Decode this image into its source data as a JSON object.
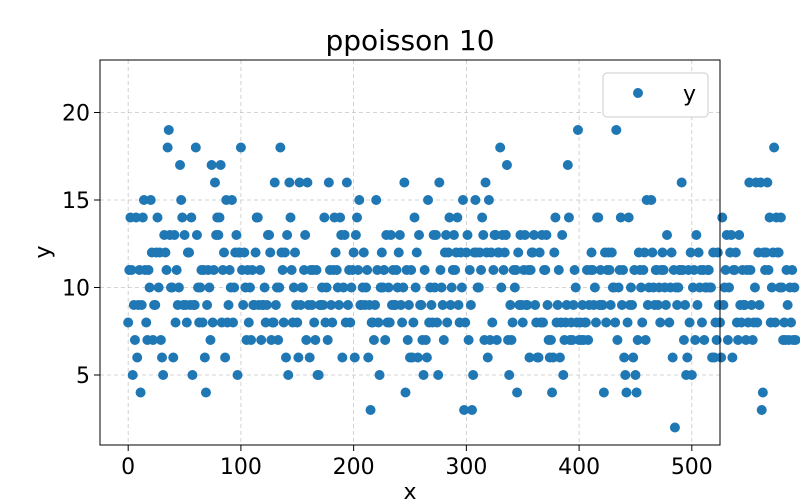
{
  "chart_data": {
    "type": "scatter",
    "title": "ppoisson 10",
    "xlabel": "x",
    "ylabel": "y",
    "xlim": [
      -25,
      525
    ],
    "ylim": [
      1.0,
      23.0
    ],
    "xticks": [
      0,
      100,
      200,
      300,
      400,
      500
    ],
    "yticks": [
      5,
      10,
      15,
      20
    ],
    "grid": true,
    "legend_position": "top-right",
    "series": [
      {
        "name": "y",
        "color": "#1f77b4",
        "y": [
          8,
          11,
          14,
          11,
          5,
          9,
          7,
          14,
          6,
          9,
          11,
          4,
          9,
          14,
          15,
          11,
          8,
          7,
          11,
          10,
          15,
          12,
          7,
          9,
          9,
          12,
          14,
          10,
          12,
          7,
          6,
          5,
          13,
          12,
          11,
          18,
          19,
          13,
          10,
          10,
          6,
          13,
          8,
          11,
          9,
          10,
          17,
          15,
          14,
          9,
          13,
          9,
          8,
          12,
          12,
          9,
          14,
          5,
          9,
          9,
          18,
          13,
          10,
          8,
          10,
          11,
          8,
          11,
          6,
          4,
          9,
          11,
          10,
          7,
          17,
          8,
          11,
          16,
          13,
          14,
          13,
          14,
          17,
          8,
          11,
          12,
          6,
          15,
          8,
          9,
          11,
          10,
          15,
          8,
          10,
          12,
          13,
          5,
          12,
          12,
          18,
          11,
          9,
          12,
          10,
          7,
          11,
          8,
          10,
          7,
          11,
          9,
          9,
          12,
          14,
          14,
          9,
          11,
          7,
          9,
          9,
          10,
          8,
          9,
          13,
          13,
          12,
          7,
          8,
          8,
          16,
          9,
          10,
          7,
          10,
          18,
          12,
          11,
          8,
          12,
          6,
          13,
          5,
          16,
          14,
          11,
          8,
          10,
          12,
          9,
          8,
          6,
          16,
          9,
          10,
          10,
          11,
          13,
          7,
          16,
          9,
          6,
          11,
          9,
          11,
          8,
          7,
          11,
          5,
          5,
          9,
          9,
          10,
          9,
          14,
          8,
          10,
          7,
          16,
          11,
          9,
          8,
          11,
          14,
          12,
          11,
          10,
          9,
          14,
          13,
          6,
          10,
          13,
          8,
          16,
          9,
          11,
          8,
          10,
          11,
          12,
          6,
          13,
          14,
          11,
          15,
          9,
          9,
          10,
          12,
          9,
          10,
          11,
          6,
          9,
          3,
          8,
          8,
          7,
          9,
          15,
          11,
          8,
          5,
          10,
          12,
          10,
          11,
          7,
          13,
          8,
          10,
          8,
          13,
          9,
          11,
          9,
          9,
          11,
          10,
          12,
          13,
          9,
          8,
          10,
          16,
          4,
          11,
          7,
          9,
          6,
          11,
          6,
          8,
          14,
          10,
          12,
          6,
          13,
          9,
          9,
          7,
          5,
          11,
          7,
          6,
          15,
          8,
          10,
          9,
          8,
          13,
          10,
          13,
          8,
          5,
          16,
          11,
          10,
          9,
          7,
          12,
          13,
          8,
          12,
          14,
          9,
          10,
          11,
          13,
          11,
          12,
          14,
          9,
          8,
          12,
          10,
          15,
          3,
          8,
          12,
          13,
          7,
          11,
          9,
          3,
          5,
          12,
          15,
          12,
          10,
          10,
          12,
          11,
          14,
          13,
          7,
          16,
          12,
          6,
          15,
          7,
          12,
          8,
          11,
          13,
          13,
          7,
          12,
          12,
          18,
          10,
          13,
          11,
          12,
          13,
          17,
          7,
          5,
          9,
          7,
          8,
          11,
          10,
          11,
          4,
          12,
          9,
          13,
          9,
          8,
          11,
          13,
          9,
          9,
          11,
          6,
          11,
          12,
          12,
          13,
          9,
          8,
          6,
          6,
          12,
          8,
          13,
          8,
          11,
          11,
          13,
          9,
          7,
          6,
          7,
          4,
          6,
          12,
          14,
          8,
          9,
          11,
          6,
          8,
          13,
          5,
          7,
          8,
          9,
          17,
          14,
          7,
          8,
          7,
          9,
          11,
          10,
          8,
          19,
          7,
          8,
          7,
          9,
          7,
          8,
          8,
          11,
          7,
          9,
          11,
          12,
          11,
          9,
          10,
          8,
          14,
          14,
          9,
          11,
          9,
          9,
          4,
          12,
          8,
          11,
          12,
          11,
          9,
          12,
          10,
          10,
          8,
          19,
          7,
          10,
          11,
          14,
          9,
          11,
          6,
          5,
          4,
          8,
          14,
          9,
          10,
          9,
          6,
          11,
          5,
          4,
          7,
          12,
          11,
          10,
          8,
          11,
          12,
          7,
          15,
          9,
          10,
          20,
          15,
          12,
          10,
          9,
          11,
          11,
          9,
          10,
          8,
          11,
          12,
          11,
          10,
          9,
          13,
          22,
          8,
          10,
          12,
          6,
          11,
          2,
          10,
          9,
          10,
          11,
          11,
          16,
          11,
          7,
          9,
          5,
          6,
          11,
          8,
          12,
          5,
          10,
          11,
          7,
          13,
          9,
          12,
          10,
          11,
          8,
          11,
          7,
          10,
          10,
          11,
          11,
          10,
          10,
          6,
          12,
          6,
          8,
          7,
          12,
          9,
          8,
          6,
          14,
          9,
          10,
          11,
          13,
          7,
          10,
          12,
          13,
          6,
          11,
          11,
          12,
          8,
          7,
          13,
          9,
          8,
          11,
          9,
          9,
          7,
          11,
          8,
          16,
          11,
          9,
          7,
          8,
          10,
          16,
          8,
          12,
          9,
          16,
          3,
          4,
          12,
          11,
          12,
          16,
          11,
          14,
          8,
          10,
          12,
          18,
          8,
          14,
          12,
          12,
          10,
          14,
          10,
          7,
          8,
          7,
          11,
          9,
          7,
          10,
          8,
          11,
          7,
          10,
          7
        ]
      }
    ]
  }
}
